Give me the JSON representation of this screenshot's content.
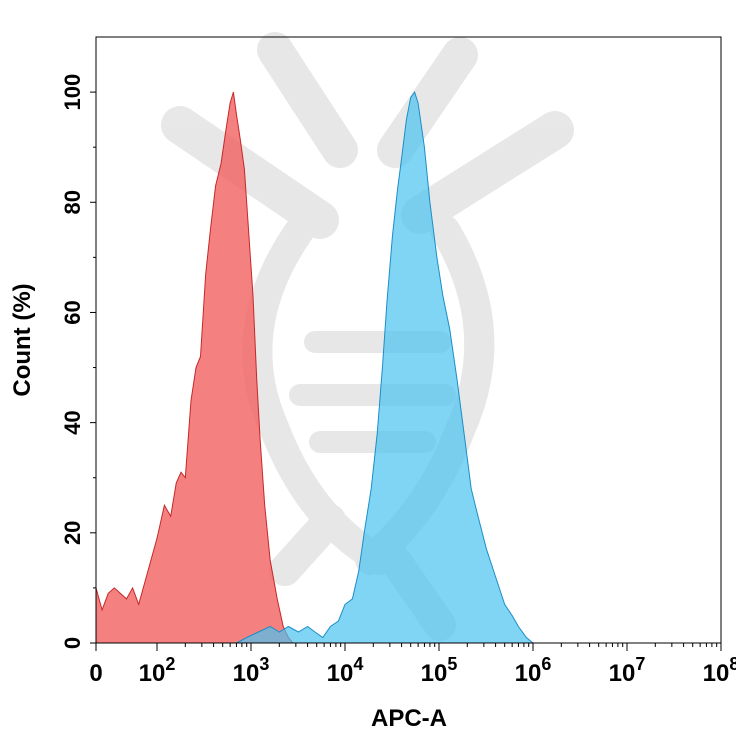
{
  "chart_data": {
    "type": "area",
    "title": "",
    "xlabel": "APC-A",
    "ylabel": "Count (%)",
    "x_scale": "biexponential",
    "ylim": [
      0,
      110
    ],
    "grid": false,
    "legend": "none",
    "x_ticks": [
      {
        "value": 0,
        "base": "0",
        "exp": ""
      },
      {
        "value": 100,
        "base": "10",
        "exp": "2"
      },
      {
        "value": 1000,
        "base": "10",
        "exp": "3"
      },
      {
        "value": 10000,
        "base": "10",
        "exp": "4"
      },
      {
        "value": 100000,
        "base": "10",
        "exp": "5"
      },
      {
        "value": 1000000,
        "base": "10",
        "exp": "6"
      },
      {
        "value": 10000000,
        "base": "10",
        "exp": "7"
      },
      {
        "value": 100000000,
        "base": "10",
        "exp": "8"
      }
    ],
    "y_ticks": [
      "0",
      "20",
      "40",
      "60",
      "80",
      "100"
    ],
    "series": [
      {
        "color": "#f26060",
        "stroke": "#c62828",
        "opacity": 0.8,
        "points": [
          [
            0,
            10
          ],
          [
            5,
            8
          ],
          [
            10,
            6
          ],
          [
            20,
            9
          ],
          [
            30,
            10
          ],
          [
            40,
            9
          ],
          [
            50,
            8
          ],
          [
            60,
            10
          ],
          [
            70,
            7
          ],
          [
            80,
            11
          ],
          [
            100,
            19
          ],
          [
            120,
            25
          ],
          [
            140,
            23
          ],
          [
            160,
            29
          ],
          [
            180,
            31
          ],
          [
            200,
            30
          ],
          [
            230,
            44
          ],
          [
            260,
            50
          ],
          [
            290,
            52
          ],
          [
            330,
            67
          ],
          [
            370,
            75
          ],
          [
            420,
            83
          ],
          [
            480,
            87
          ],
          [
            540,
            93
          ],
          [
            600,
            98
          ],
          [
            650,
            100
          ],
          [
            700,
            96
          ],
          [
            760,
            92
          ],
          [
            850,
            86
          ],
          [
            950,
            74
          ],
          [
            1050,
            63
          ],
          [
            1150,
            48
          ],
          [
            1250,
            37
          ],
          [
            1400,
            25
          ],
          [
            1600,
            15
          ],
          [
            1900,
            8
          ],
          [
            2200,
            3
          ],
          [
            2500,
            1
          ],
          [
            2800,
            0
          ]
        ]
      },
      {
        "color": "#4cc3f0",
        "stroke": "#1b8ec7",
        "opacity": 0.7,
        "points": [
          [
            700,
            0
          ],
          [
            900,
            1
          ],
          [
            1200,
            2
          ],
          [
            1600,
            3
          ],
          [
            2000,
            2
          ],
          [
            2500,
            3
          ],
          [
            3200,
            2
          ],
          [
            4000,
            3
          ],
          [
            4800,
            2
          ],
          [
            5800,
            1
          ],
          [
            7000,
            3
          ],
          [
            8500,
            4
          ],
          [
            10000,
            7
          ],
          [
            12000,
            8
          ],
          [
            14000,
            13
          ],
          [
            16000,
            20
          ],
          [
            19000,
            28
          ],
          [
            22000,
            38
          ],
          [
            25000,
            50
          ],
          [
            28000,
            62
          ],
          [
            32000,
            74
          ],
          [
            36000,
            82
          ],
          [
            40000,
            88
          ],
          [
            45000,
            95
          ],
          [
            50000,
            99
          ],
          [
            55000,
            100
          ],
          [
            60000,
            98
          ],
          [
            70000,
            90
          ],
          [
            80000,
            80
          ],
          [
            95000,
            70
          ],
          [
            110000,
            63
          ],
          [
            130000,
            57
          ],
          [
            155000,
            48
          ],
          [
            185000,
            38
          ],
          [
            220000,
            28
          ],
          [
            260000,
            23
          ],
          [
            320000,
            17
          ],
          [
            400000,
            12
          ],
          [
            500000,
            7
          ],
          [
            600000,
            5
          ],
          [
            700000,
            3
          ],
          [
            850000,
            1
          ],
          [
            1000000,
            0
          ]
        ]
      }
    ]
  }
}
